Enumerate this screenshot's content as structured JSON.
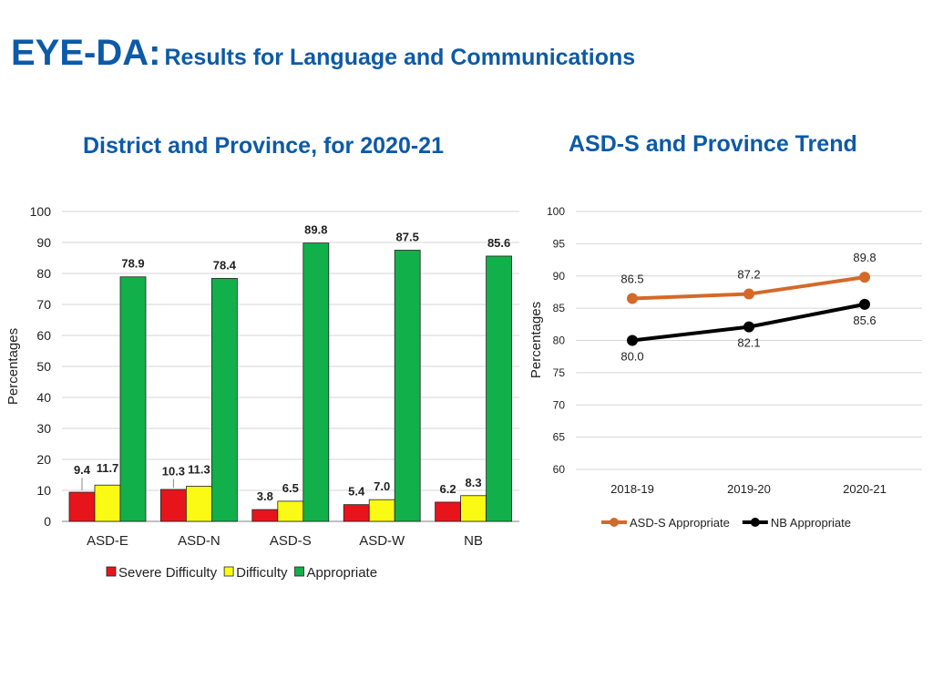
{
  "header": {
    "title_main": "EYE-DA:",
    "title_sub": "Results for Language and Communications"
  },
  "chart_data": [
    {
      "type": "bar",
      "title": "District and Province, for 2020-21",
      "xlabel": "",
      "ylabel": "Percentages",
      "ylim": [
        0,
        100
      ],
      "yticks": [
        0,
        10,
        20,
        30,
        40,
        50,
        60,
        70,
        80,
        90,
        100
      ],
      "grid": true,
      "legend_position": "bottom",
      "categories": [
        "ASD-E",
        "ASD-N",
        "ASD-S",
        "ASD-W",
        "NB"
      ],
      "series": [
        {
          "name": "Severe Difficulty",
          "color": "#e8141b",
          "values": [
            9.4,
            10.3,
            3.8,
            5.4,
            6.2
          ],
          "labels": [
            "9.4",
            "10.3",
            "3.8",
            "5.4",
            "6.2"
          ]
        },
        {
          "name": "Difficulty",
          "color": "#fafa14",
          "values": [
            11.7,
            11.3,
            6.5,
            7.0,
            8.3
          ],
          "labels": [
            "11.7",
            "11.3",
            "6.5",
            "7.0",
            "8.3"
          ]
        },
        {
          "name": "Appropriate",
          "color": "#11b04a",
          "values": [
            78.9,
            78.4,
            89.8,
            87.5,
            85.6
          ],
          "labels": [
            "78.9",
            "78.4",
            "89.8",
            "87.5",
            "85.6"
          ]
        }
      ]
    },
    {
      "type": "line",
      "title": "ASD-S and Province Trend",
      "xlabel": "",
      "ylabel": "Percentages",
      "ylim": [
        60,
        100
      ],
      "yticks": [
        60,
        65,
        70,
        75,
        80,
        85,
        90,
        95,
        100
      ],
      "grid": true,
      "legend_position": "bottom",
      "categories": [
        "2018-19",
        "2019-20",
        "2020-21"
      ],
      "series": [
        {
          "name": "ASD-S Appropriate",
          "color": "#d4692a",
          "values": [
            86.5,
            87.2,
            89.8
          ],
          "labels": [
            "86.5",
            "87.2",
            "89.8"
          ],
          "label_side": "above"
        },
        {
          "name": "NB Appropriate",
          "color": "#000000",
          "values": [
            80.0,
            82.1,
            85.6
          ],
          "labels": [
            "80.0",
            "82.1",
            "85.6"
          ],
          "label_side": "below"
        }
      ]
    }
  ]
}
